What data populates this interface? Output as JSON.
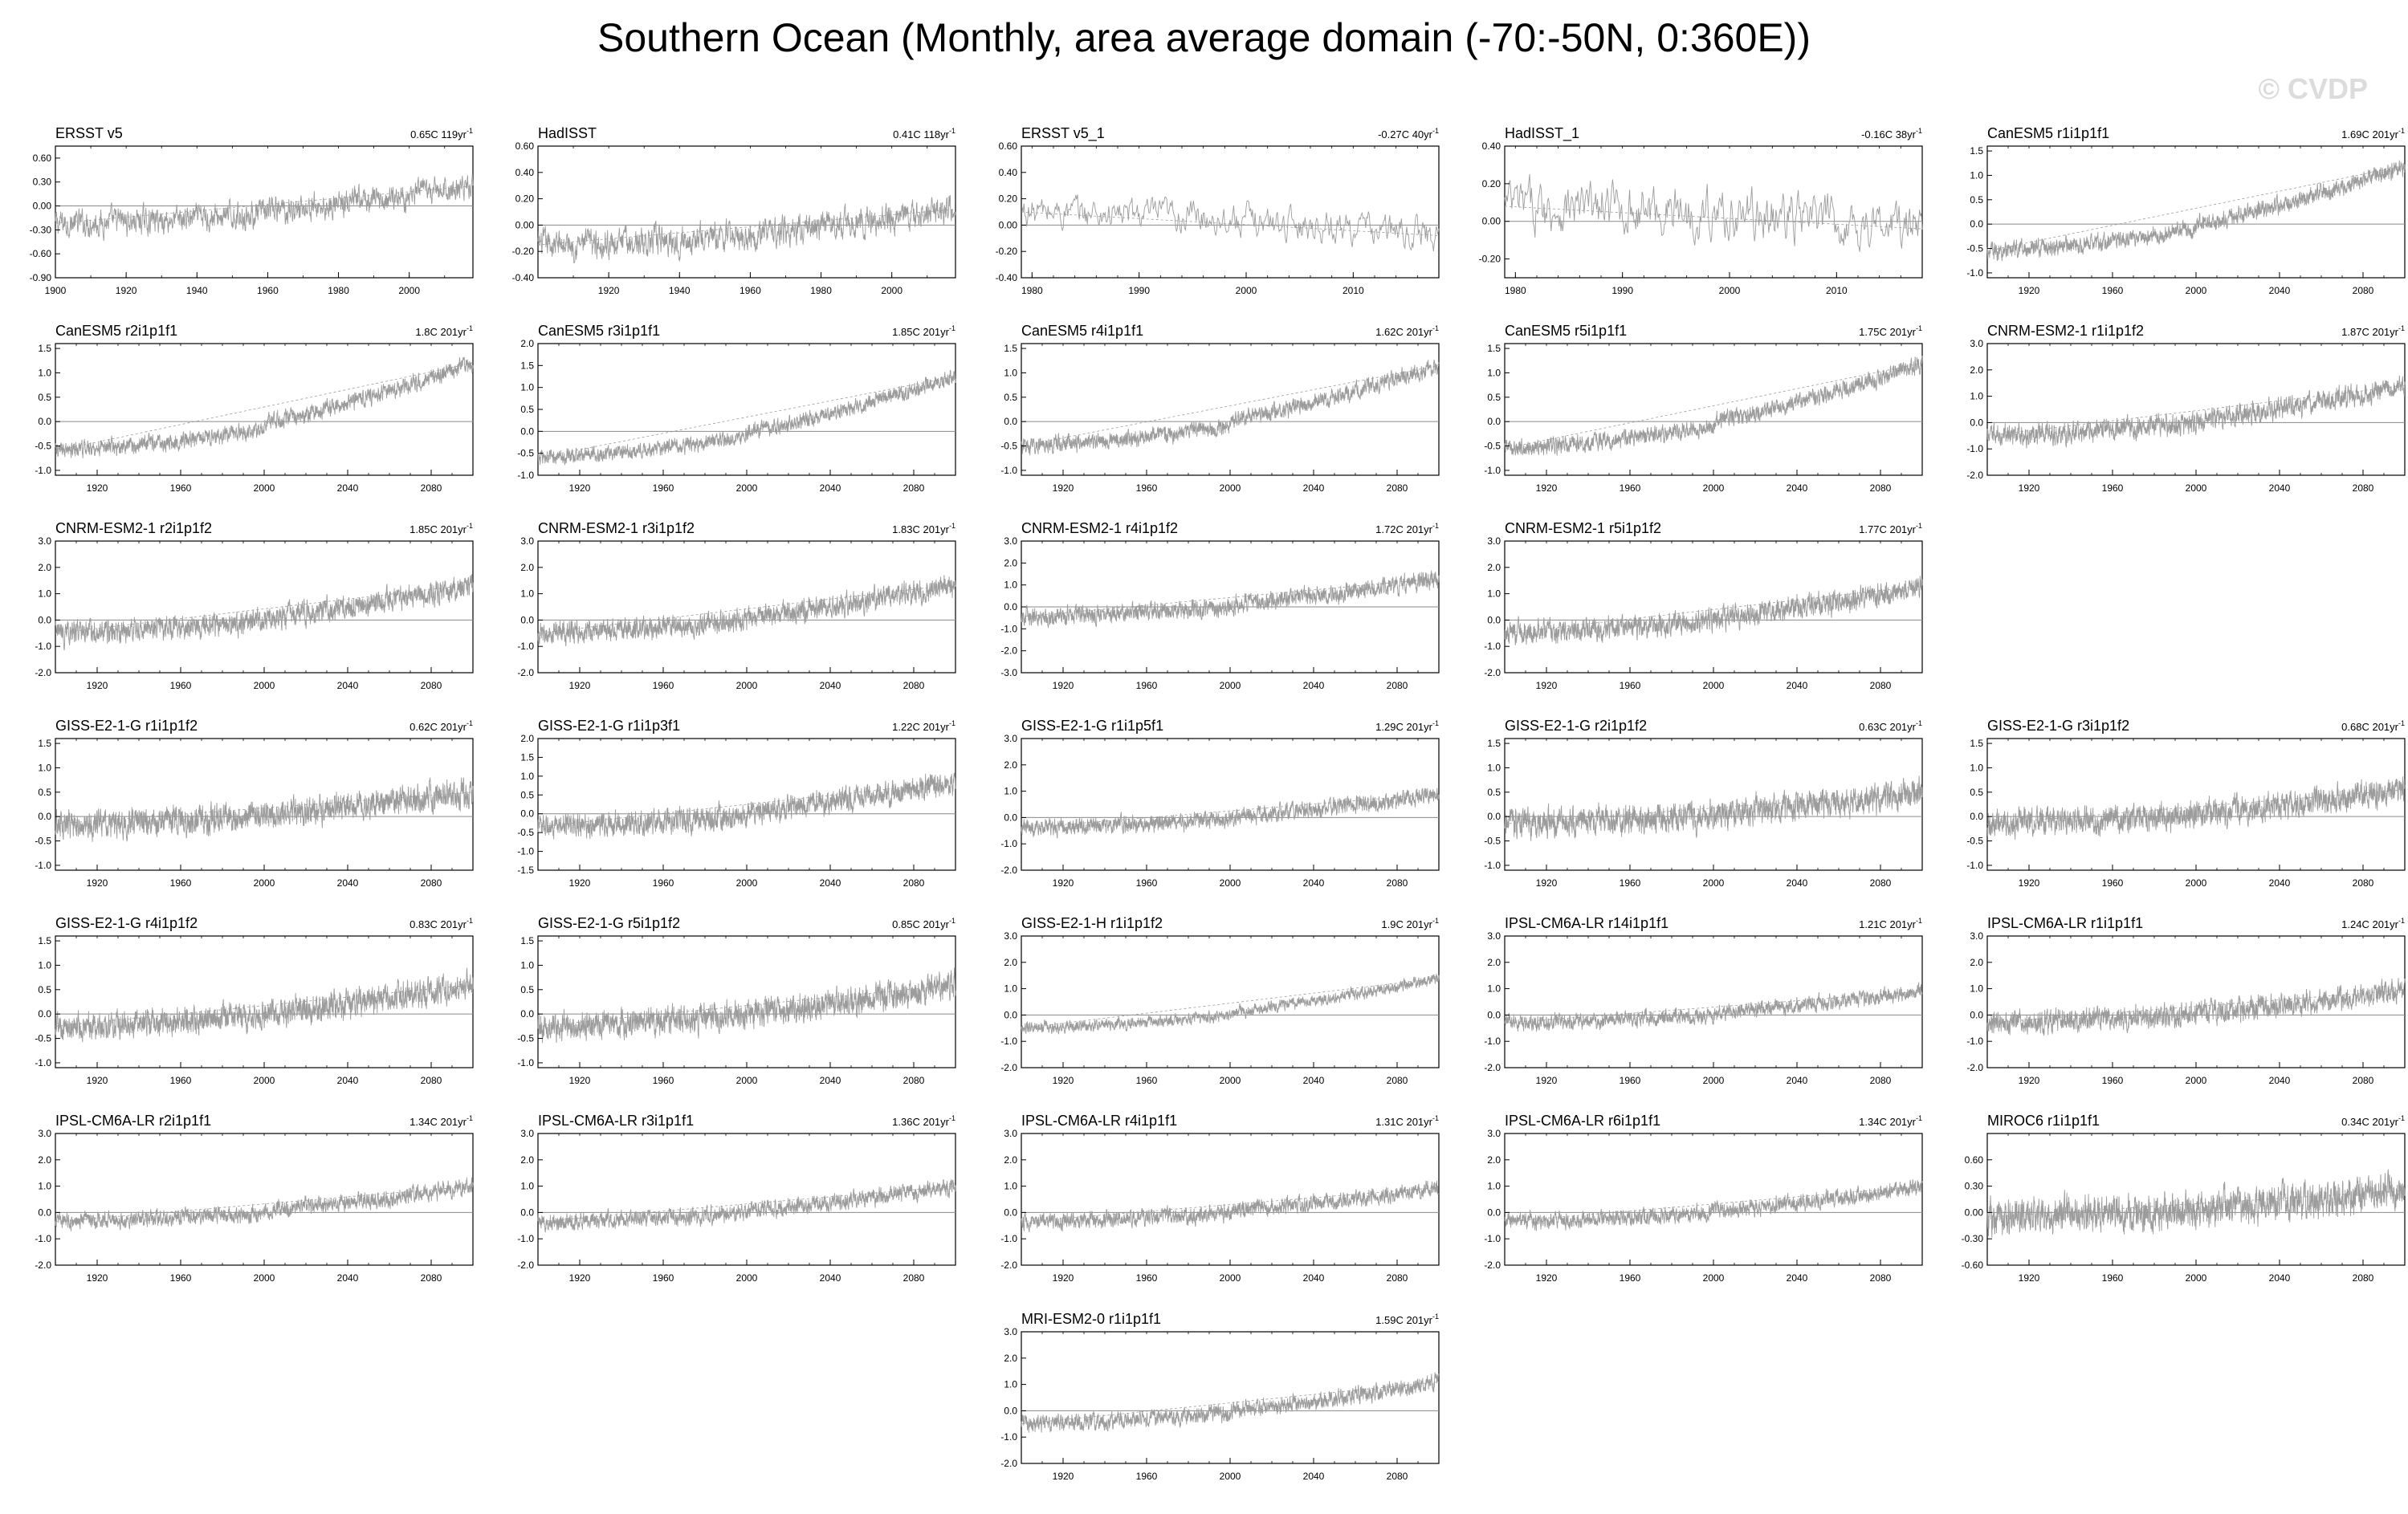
{
  "title": "Southern Ocean (Monthly, area average domain (-70:-50N, 0:360E))",
  "watermark": "© CVDP",
  "colors": {
    "series": "#9c9c9c",
    "zero_line": "#8a8a8a",
    "axis": "#000000"
  },
  "chart_data": [
    {
      "type": "line",
      "title": "ERSST v5",
      "trend": "0.65C 119yr",
      "trend_exp": "-1",
      "xlim": [
        1900,
        2018
      ],
      "xticks": [
        "1900",
        "1920",
        "1940",
        "1960",
        "1980",
        "2000"
      ],
      "ylim": [
        -0.9,
        0.75
      ],
      "yticks": [
        "0.60",
        "0.30",
        "0.00",
        "-0.30",
        "-0.60",
        "-0.90"
      ],
      "series": [
        {
          "start": -0.22,
          "end": 0.25,
          "amp": 0.12
        }
      ]
    },
    {
      "type": "line",
      "title": "HadISST",
      "trend": "0.41C 118yr",
      "trend_exp": "-1",
      "xlim": [
        1900,
        2018
      ],
      "xticks": [
        "1920",
        "1940",
        "1960",
        "1980",
        "2000"
      ],
      "ylim": [
        -0.4,
        0.6
      ],
      "yticks": [
        "0.60",
        "0.40",
        "0.20",
        "0.00",
        "-0.20",
        "-0.40"
      ],
      "series": [
        {
          "start": -0.15,
          "end": 0.12,
          "amp": 0.08
        }
      ]
    },
    {
      "type": "line",
      "title": "ERSST v5_1",
      "trend": "-0.27C 40yr",
      "trend_exp": "-1",
      "xlim": [
        1979,
        2018
      ],
      "xticks": [
        "1980",
        "1990",
        "2000",
        "2010"
      ],
      "ylim": [
        -0.4,
        0.6
      ],
      "yticks": [
        "0.60",
        "0.40",
        "0.20",
        "0.00",
        "-0.20",
        "-0.40"
      ],
      "series": [
        {
          "start": 0.1,
          "end": -0.08,
          "amp": 0.09
        }
      ]
    },
    {
      "type": "line",
      "title": "HadISST_1",
      "trend": "-0.16C 38yr",
      "trend_exp": "-1",
      "xlim": [
        1979,
        2018
      ],
      "xticks": [
        "1980",
        "1990",
        "2000",
        "2010"
      ],
      "ylim": [
        -0.3,
        0.4
      ],
      "yticks": [
        "0.40",
        "0.20",
        "0.00",
        "-0.20"
      ],
      "series": [
        {
          "start": 0.08,
          "end": -0.04,
          "amp": 0.1
        }
      ]
    },
    {
      "type": "line",
      "title": "CanESM5 r1i1p1f1",
      "trend": "1.69C 201yr",
      "trend_exp": "-1",
      "xlim": [
        1900,
        2100
      ],
      "xticks": [
        "1920",
        "1960",
        "2000",
        "2040",
        "2080"
      ],
      "ylim": [
        -1.1,
        1.6
      ],
      "yticks": [
        "1.5",
        "1.0",
        "0.5",
        "0.0",
        "-0.5",
        "-1.0"
      ],
      "series": [
        {
          "start": -0.55,
          "end": 1.2,
          "amp": 0.12
        }
      ]
    },
    {
      "type": "line",
      "title": "CanESM5 r2i1p1f1",
      "trend": "1.8C 201yr",
      "trend_exp": "-1",
      "xlim": [
        1900,
        2100
      ],
      "xticks": [
        "1920",
        "1960",
        "2000",
        "2040",
        "2080"
      ],
      "ylim": [
        -1.1,
        1.6
      ],
      "yticks": [
        "1.5",
        "1.0",
        "0.5",
        "0.0",
        "-0.5",
        "-1.0"
      ],
      "series": [
        {
          "start": -0.6,
          "end": 1.2,
          "amp": 0.12
        }
      ]
    },
    {
      "type": "line",
      "title": "CanESM5 r3i1p1f1",
      "trend": "1.85C 201yr",
      "trend_exp": "-1",
      "xlim": [
        1900,
        2100
      ],
      "xticks": [
        "1920",
        "1960",
        "2000",
        "2040",
        "2080"
      ],
      "ylim": [
        -1.0,
        2.0
      ],
      "yticks": [
        "2.0",
        "1.5",
        "1.0",
        "0.5",
        "0.0",
        "-0.5",
        "-1.0"
      ],
      "series": [
        {
          "start": -0.6,
          "end": 1.25,
          "amp": 0.12
        }
      ]
    },
    {
      "type": "line",
      "title": "CanESM5 r4i1p1f1",
      "trend": "1.62C 201yr",
      "trend_exp": "-1",
      "xlim": [
        1900,
        2100
      ],
      "xticks": [
        "1920",
        "1960",
        "2000",
        "2040",
        "2080"
      ],
      "ylim": [
        -1.1,
        1.6
      ],
      "yticks": [
        "1.5",
        "1.0",
        "0.5",
        "0.0",
        "-0.5",
        "-1.0"
      ],
      "series": [
        {
          "start": -0.5,
          "end": 1.15,
          "amp": 0.12
        }
      ]
    },
    {
      "type": "line",
      "title": "CanESM5 r5i1p1f1",
      "trend": "1.75C 201yr",
      "trend_exp": "-1",
      "xlim": [
        1900,
        2100
      ],
      "xticks": [
        "1920",
        "1960",
        "2000",
        "2040",
        "2080"
      ],
      "ylim": [
        -1.1,
        1.6
      ],
      "yticks": [
        "1.5",
        "1.0",
        "0.5",
        "0.0",
        "-0.5",
        "-1.0"
      ],
      "series": [
        {
          "start": -0.55,
          "end": 1.2,
          "amp": 0.12
        }
      ]
    },
    {
      "type": "line",
      "title": "CNRM-ESM2-1 r1i1p1f2",
      "trend": "1.87C 201yr",
      "trend_exp": "-1",
      "xlim": [
        1900,
        2100
      ],
      "xticks": [
        "1920",
        "1960",
        "2000",
        "2040",
        "2080"
      ],
      "ylim": [
        -2.0,
        3.0
      ],
      "yticks": [
        "3.0",
        "2.0",
        "1.0",
        "0.0",
        "-1.0",
        "-2.0"
      ],
      "series": [
        {
          "start": -0.5,
          "end": 1.4,
          "amp": 0.28
        }
      ]
    },
    {
      "type": "line",
      "title": "CNRM-ESM2-1 r2i1p1f2",
      "trend": "1.85C 201yr",
      "trend_exp": "-1",
      "xlim": [
        1900,
        2100
      ],
      "xticks": [
        "1920",
        "1960",
        "2000",
        "2040",
        "2080"
      ],
      "ylim": [
        -2.0,
        3.0
      ],
      "yticks": [
        "3.0",
        "2.0",
        "1.0",
        "0.0",
        "-1.0",
        "-2.0"
      ],
      "series": [
        {
          "start": -0.5,
          "end": 1.35,
          "amp": 0.3
        }
      ]
    },
    {
      "type": "line",
      "title": "CNRM-ESM2-1 r3i1p1f2",
      "trend": "1.83C 201yr",
      "trend_exp": "-1",
      "xlim": [
        1900,
        2100
      ],
      "xticks": [
        "1920",
        "1960",
        "2000",
        "2040",
        "2080"
      ],
      "ylim": [
        -2.0,
        3.0
      ],
      "yticks": [
        "3.0",
        "2.0",
        "1.0",
        "0.0",
        "-1.0",
        "-2.0"
      ],
      "series": [
        {
          "start": -0.5,
          "end": 1.35,
          "amp": 0.3
        }
      ]
    },
    {
      "type": "line",
      "title": "CNRM-ESM2-1 r4i1p1f2",
      "trend": "1.72C 201yr",
      "trend_exp": "-1",
      "xlim": [
        1900,
        2100
      ],
      "xticks": [
        "1920",
        "1960",
        "2000",
        "2040",
        "2080"
      ],
      "ylim": [
        -3.0,
        3.0
      ],
      "yticks": [
        "3.0",
        "2.0",
        "1.0",
        "0.0",
        "-1.0",
        "-2.0",
        "-3.0"
      ],
      "series": [
        {
          "start": -0.45,
          "end": 1.3,
          "amp": 0.28
        }
      ]
    },
    {
      "type": "line",
      "title": "CNRM-ESM2-1 r5i1p1f2",
      "trend": "1.77C 201yr",
      "trend_exp": "-1",
      "xlim": [
        1900,
        2100
      ],
      "xticks": [
        "1920",
        "1960",
        "2000",
        "2040",
        "2080"
      ],
      "ylim": [
        -2.0,
        3.0
      ],
      "yticks": [
        "3.0",
        "2.0",
        "1.0",
        "0.0",
        "-1.0",
        "-2.0"
      ],
      "series": [
        {
          "start": -0.5,
          "end": 1.3,
          "amp": 0.3
        }
      ]
    },
    {
      "type": "line",
      "title": "GISS-E2-1-G r1i1p1f2",
      "trend": "0.62C 201yr",
      "trend_exp": "-1",
      "xlim": [
        1900,
        2100
      ],
      "xticks": [
        "1920",
        "1960",
        "2000",
        "2040",
        "2080"
      ],
      "ylim": [
        -1.1,
        1.6
      ],
      "yticks": [
        "1.5",
        "1.0",
        "0.5",
        "0.0",
        "-0.5",
        "-1.0"
      ],
      "series": [
        {
          "start": -0.15,
          "end": 0.5,
          "amp": 0.2
        }
      ]
    },
    {
      "type": "line",
      "title": "GISS-E2-1-G r1i1p3f1",
      "trend": "1.22C 201yr",
      "trend_exp": "-1",
      "xlim": [
        1900,
        2100
      ],
      "xticks": [
        "1920",
        "1960",
        "2000",
        "2040",
        "2080"
      ],
      "ylim": [
        -1.5,
        2.0
      ],
      "yticks": [
        "2.0",
        "1.5",
        "1.0",
        "0.5",
        "0.0",
        "-0.5",
        "-1.0",
        "-1.5"
      ],
      "series": [
        {
          "start": -0.35,
          "end": 0.85,
          "amp": 0.22
        }
      ]
    },
    {
      "type": "line",
      "title": "GISS-E2-1-G r1i1p5f1",
      "trend": "1.29C 201yr",
      "trend_exp": "-1",
      "xlim": [
        1900,
        2100
      ],
      "xticks": [
        "1920",
        "1960",
        "2000",
        "2040",
        "2080"
      ],
      "ylim": [
        -2.0,
        3.0
      ],
      "yticks": [
        "3.0",
        "2.0",
        "1.0",
        "0.0",
        "-1.0",
        "-2.0"
      ],
      "series": [
        {
          "start": -0.4,
          "end": 0.9,
          "amp": 0.22
        }
      ]
    },
    {
      "type": "line",
      "title": "GISS-E2-1-G r2i1p1f2",
      "trend": "0.63C 201yr",
      "trend_exp": "-1",
      "xlim": [
        1900,
        2100
      ],
      "xticks": [
        "1920",
        "1960",
        "2000",
        "2040",
        "2080"
      ],
      "ylim": [
        -1.1,
        1.6
      ],
      "yticks": [
        "1.5",
        "1.0",
        "0.5",
        "0.0",
        "-0.5",
        "-1.0"
      ],
      "series": [
        {
          "start": -0.15,
          "end": 0.5,
          "amp": 0.2
        }
      ]
    },
    {
      "type": "line",
      "title": "GISS-E2-1-G r3i1p1f2",
      "trend": "0.68C 201yr",
      "trend_exp": "-1",
      "xlim": [
        1900,
        2100
      ],
      "xticks": [
        "1920",
        "1960",
        "2000",
        "2040",
        "2080"
      ],
      "ylim": [
        -1.1,
        1.6
      ],
      "yticks": [
        "1.5",
        "1.0",
        "0.5",
        "0.0",
        "-0.5",
        "-1.0"
      ],
      "series": [
        {
          "start": -0.15,
          "end": 0.55,
          "amp": 0.2
        }
      ]
    },
    {
      "type": "line",
      "title": "GISS-E2-1-G r4i1p1f2",
      "trend": "0.83C 201yr",
      "trend_exp": "-1",
      "xlim": [
        1900,
        2100
      ],
      "xticks": [
        "1920",
        "1960",
        "2000",
        "2040",
        "2080"
      ],
      "ylim": [
        -1.1,
        1.6
      ],
      "yticks": [
        "1.5",
        "1.0",
        "0.5",
        "0.0",
        "-0.5",
        "-1.0"
      ],
      "series": [
        {
          "start": -0.25,
          "end": 0.6,
          "amp": 0.2
        }
      ]
    },
    {
      "type": "line",
      "title": "GISS-E2-1-G r5i1p1f2",
      "trend": "0.85C 201yr",
      "trend_exp": "-1",
      "xlim": [
        1900,
        2100
      ],
      "xticks": [
        "1920",
        "1960",
        "2000",
        "2040",
        "2080"
      ],
      "ylim": [
        -1.1,
        1.6
      ],
      "yticks": [
        "1.5",
        "1.0",
        "0.5",
        "0.0",
        "-0.5",
        "-1.0"
      ],
      "series": [
        {
          "start": -0.25,
          "end": 0.6,
          "amp": 0.2
        }
      ]
    },
    {
      "type": "line",
      "title": "GISS-E2-1-H r1i1p1f2",
      "trend": "1.9C 201yr",
      "trend_exp": "-1",
      "xlim": [
        1900,
        2100
      ],
      "xticks": [
        "1920",
        "1960",
        "2000",
        "2040",
        "2080"
      ],
      "ylim": [
        -2.0,
        3.0
      ],
      "yticks": [
        "3.0",
        "2.0",
        "1.0",
        "0.0",
        "-1.0",
        "-2.0"
      ],
      "series": [
        {
          "start": -0.5,
          "end": 1.4,
          "amp": 0.15
        }
      ]
    },
    {
      "type": "line",
      "title": "IPSL-CM6A-LR r14i1p1f1",
      "trend": "1.21C 201yr",
      "trend_exp": "-1",
      "xlim": [
        1900,
        2100
      ],
      "xticks": [
        "1920",
        "1960",
        "2000",
        "2040",
        "2080"
      ],
      "ylim": [
        -2.0,
        3.0
      ],
      "yticks": [
        "3.0",
        "2.0",
        "1.0",
        "0.0",
        "-1.0",
        "-2.0"
      ],
      "series": [
        {
          "start": -0.3,
          "end": 0.9,
          "amp": 0.2
        }
      ]
    },
    {
      "type": "line",
      "title": "IPSL-CM6A-LR r1i1p1f1",
      "trend": "1.24C 201yr",
      "trend_exp": "-1",
      "xlim": [
        1900,
        2100
      ],
      "xticks": [
        "1920",
        "1960",
        "2000",
        "2040",
        "2080"
      ],
      "ylim": [
        -2.0,
        3.0
      ],
      "yticks": [
        "3.0",
        "2.0",
        "1.0",
        "0.0",
        "-1.0",
        "-2.0"
      ],
      "series": [
        {
          "start": -0.3,
          "end": 0.95,
          "amp": 0.3
        }
      ]
    },
    {
      "type": "line",
      "title": "IPSL-CM6A-LR r2i1p1f1",
      "trend": "1.34C 201yr",
      "trend_exp": "-1",
      "xlim": [
        1900,
        2100
      ],
      "xticks": [
        "1920",
        "1960",
        "2000",
        "2040",
        "2080"
      ],
      "ylim": [
        -2.0,
        3.0
      ],
      "yticks": [
        "3.0",
        "2.0",
        "1.0",
        "0.0",
        "-1.0",
        "-2.0"
      ],
      "series": [
        {
          "start": -0.35,
          "end": 1.0,
          "amp": 0.22
        }
      ]
    },
    {
      "type": "line",
      "title": "IPSL-CM6A-LR r3i1p1f1",
      "trend": "1.36C 201yr",
      "trend_exp": "-1",
      "xlim": [
        1900,
        2100
      ],
      "xticks": [
        "1920",
        "1960",
        "2000",
        "2040",
        "2080"
      ],
      "ylim": [
        -2.0,
        3.0
      ],
      "yticks": [
        "3.0",
        "2.0",
        "1.0",
        "0.0",
        "-1.0",
        "-2.0"
      ],
      "series": [
        {
          "start": -0.35,
          "end": 1.0,
          "amp": 0.22
        }
      ]
    },
    {
      "type": "line",
      "title": "IPSL-CM6A-LR r4i1p1f1",
      "trend": "1.31C 201yr",
      "trend_exp": "-1",
      "xlim": [
        1900,
        2100
      ],
      "xticks": [
        "1920",
        "1960",
        "2000",
        "2040",
        "2080"
      ],
      "ylim": [
        -2.0,
        3.0
      ],
      "yticks": [
        "3.0",
        "2.0",
        "1.0",
        "0.0",
        "-1.0",
        "-2.0"
      ],
      "series": [
        {
          "start": -0.35,
          "end": 0.95,
          "amp": 0.22
        }
      ]
    },
    {
      "type": "line",
      "title": "IPSL-CM6A-LR r6i1p1f1",
      "trend": "1.34C 201yr",
      "trend_exp": "-1",
      "xlim": [
        1900,
        2100
      ],
      "xticks": [
        "1920",
        "1960",
        "2000",
        "2040",
        "2080"
      ],
      "ylim": [
        -2.0,
        3.0
      ],
      "yticks": [
        "3.0",
        "2.0",
        "1.0",
        "0.0",
        "-1.0",
        "-2.0"
      ],
      "series": [
        {
          "start": -0.35,
          "end": 1.0,
          "amp": 0.22
        }
      ]
    },
    {
      "type": "line",
      "title": "MIROC6 r1i1p1f1",
      "trend": "0.34C 201yr",
      "trend_exp": "-1",
      "xlim": [
        1900,
        2100
      ],
      "xticks": [
        "1920",
        "1960",
        "2000",
        "2040",
        "2080"
      ],
      "ylim": [
        -0.6,
        0.9
      ],
      "yticks": [
        "0.60",
        "0.30",
        "0.00",
        "-0.30",
        "-0.60"
      ],
      "series": [
        {
          "start": -0.05,
          "end": 0.25,
          "amp": 0.14
        }
      ]
    },
    {
      "type": "line",
      "title": "MRI-ESM2-0 r1i1p1f1",
      "trend": "1.59C 201yr",
      "trend_exp": "-1",
      "xlim": [
        1900,
        2100
      ],
      "xticks": [
        "1920",
        "1960",
        "2000",
        "2040",
        "2080"
      ],
      "ylim": [
        -2.0,
        3.0
      ],
      "yticks": [
        "3.0",
        "2.0",
        "1.0",
        "0.0",
        "-1.0",
        "-2.0"
      ],
      "series": [
        {
          "start": -0.5,
          "end": 1.1,
          "amp": 0.22
        }
      ]
    }
  ]
}
